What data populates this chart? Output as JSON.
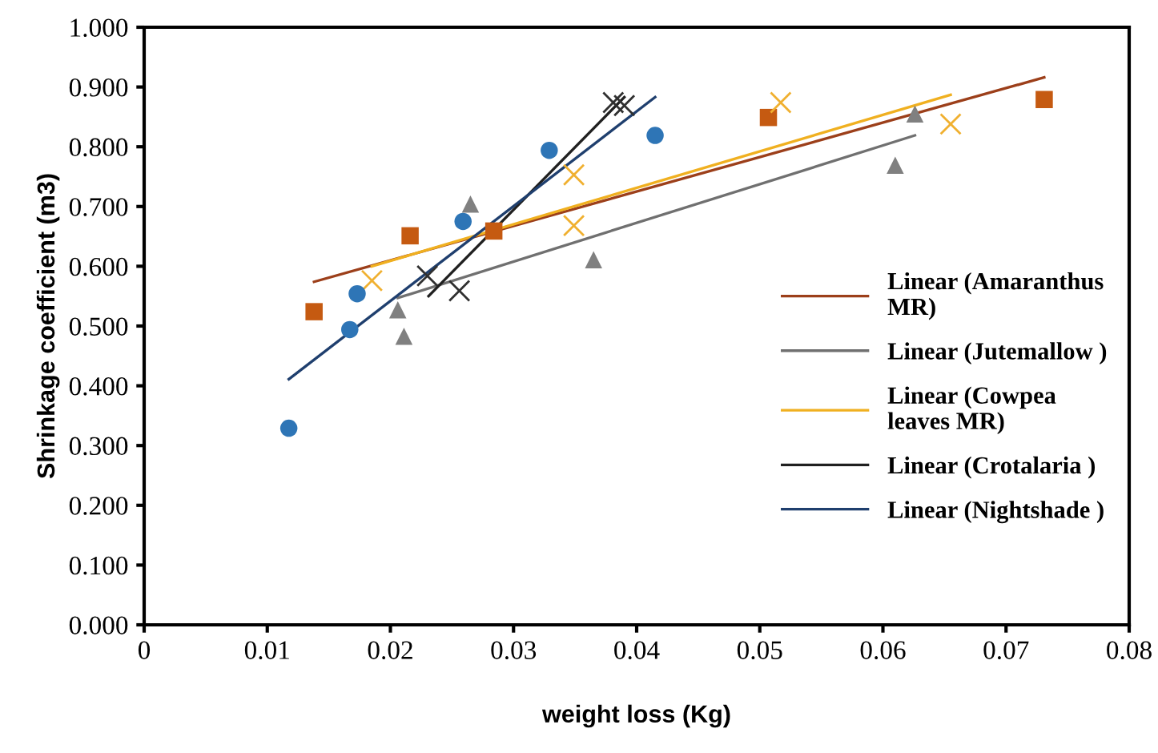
{
  "chart_data": {
    "type": "scatter",
    "xlabel": "weight loss (Kg)",
    "ylabel": "Shrinkage coefficient (m3)",
    "xlim": [
      0,
      0.08
    ],
    "ylim": [
      0,
      1.0
    ],
    "xticks": [
      0,
      0.01,
      0.02,
      0.03,
      0.04,
      0.05,
      0.06,
      0.07,
      0.08
    ],
    "yticks": [
      {
        "value": 0,
        "label": "0.000"
      },
      {
        "value": 0.1,
        "label": "0.100"
      },
      {
        "value": 0.2,
        "label": "0.200"
      },
      {
        "value": 0.3,
        "label": "0.300"
      },
      {
        "value": 0.4,
        "label": "0.400"
      },
      {
        "value": 0.5,
        "label": "0.500"
      },
      {
        "value": 0.6,
        "label": "0.600"
      },
      {
        "value": 0.7,
        "label": "0.700"
      },
      {
        "value": 0.8,
        "label": "0.800"
      },
      {
        "value": 0.9,
        "label": "0.900"
      },
      {
        "value": 1.0,
        "label": "1.000"
      }
    ],
    "grid": false,
    "legend": "right",
    "series": [
      {
        "marker": "square",
        "color": "#c55a11",
        "x": [
          0.0138,
          0.0216,
          0.0284,
          0.0507,
          0.0731
        ],
        "values": [
          0.524,
          0.651,
          0.659,
          0.849,
          0.879
        ]
      },
      {
        "marker": "triangle",
        "color": "#808080",
        "x": [
          0.0206,
          0.0211,
          0.0265,
          0.0365,
          0.061,
          0.0626
        ],
        "values": [
          0.527,
          0.483,
          0.704,
          0.611,
          0.769,
          0.855
        ]
      },
      {
        "marker": "cross",
        "color": "#f0b030",
        "x": [
          0.0185,
          0.0349,
          0.0349,
          0.0517,
          0.0655
        ],
        "values": [
          0.576,
          0.753,
          0.668,
          0.874,
          0.838
        ]
      },
      {
        "marker": "cross",
        "color": "#303030",
        "x": [
          0.023,
          0.0256,
          0.0381,
          0.039
        ],
        "values": [
          0.584,
          0.559,
          0.874,
          0.869
        ]
      },
      {
        "marker": "circle",
        "color": "#2e75b6",
        "x": [
          0.01175,
          0.0167,
          0.0173,
          0.0259,
          0.0329,
          0.0415
        ],
        "values": [
          0.329,
          0.494,
          0.554,
          0.675,
          0.794,
          0.819
        ]
      },
      {
        "type": "line",
        "name": "Linear (Amaranthus\nMR)",
        "color": "#9c3f1a",
        "x": [
          0.0138,
          0.0731
        ],
        "values": [
          0.574,
          0.916
        ]
      },
      {
        "type": "line",
        "name": "Linear (Jutemallow )",
        "color": "#707070",
        "x": [
          0.0206,
          0.0626
        ],
        "values": [
          0.547,
          0.819
        ]
      },
      {
        "type": "line",
        "name": "Linear (Cowpea\nleaves MR)",
        "color": "#f0b020",
        "x": [
          0.0185,
          0.0655
        ],
        "values": [
          0.6,
          0.887
        ]
      },
      {
        "type": "line",
        "name": "Linear (Crotalaria )",
        "color": "#202020",
        "x": [
          0.0231,
          0.039
        ],
        "values": [
          0.55,
          0.883
        ]
      },
      {
        "type": "line",
        "name": "Linear (Nightshade )",
        "color": "#1f3f6e",
        "x": [
          0.01175,
          0.0415
        ],
        "values": [
          0.411,
          0.883
        ]
      }
    ]
  }
}
